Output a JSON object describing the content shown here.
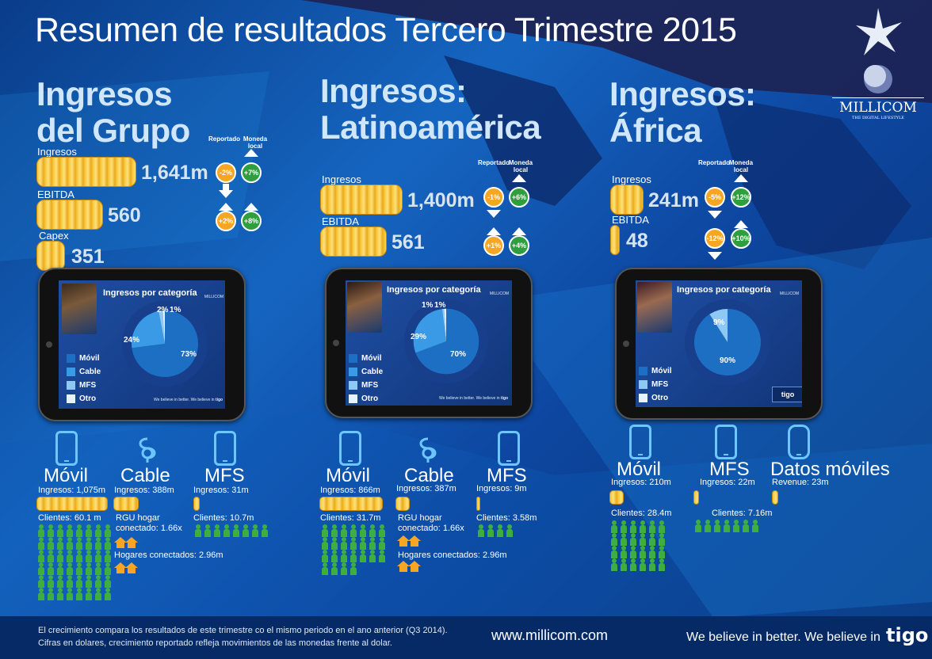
{
  "title": "Resumen de resultados Tercero Trimestre 2015",
  "brand": {
    "name": "MILLICOM",
    "tagline": "THE DIGITAL LIFESTYLE"
  },
  "colors": {
    "coin": "#f6c63b",
    "negative": "#f5a623",
    "positive": "#2e9e3e",
    "people": "#3dae3f",
    "houses": "#f5a623",
    "pie_movil": "#1d6fc4",
    "pie_cable": "#3a9ae6",
    "pie_mfs": "#8ec8f5",
    "pie_otro": "#e6f2fc"
  },
  "grupo": {
    "title_line1": "Ingresos",
    "title_line2": "del Grupo",
    "reportado_label": "Reportado",
    "moneda_local_label": "Moneda local",
    "ingresos_label": "Ingresos",
    "ingresos_value": "1,641m",
    "ebitda_label": "EBITDA",
    "ebitda_value": "560",
    "capex_label": "Capex",
    "capex_value": "351",
    "ingresos_reportado": "-2%",
    "ingresos_local": "+7%",
    "ebitda_reportado": "+2%",
    "ebitda_local": "+8%",
    "pie": {
      "title": "Ingresos por categoría",
      "slices": [
        {
          "label": "Móvil",
          "value": 73,
          "text": "73%"
        },
        {
          "label": "Cable",
          "value": 24,
          "text": "24%"
        },
        {
          "label": "MFS",
          "value": 2,
          "text": "2%"
        },
        {
          "label": "Otro",
          "value": 1,
          "text": "1%"
        }
      ]
    },
    "legend": [
      "Móvil",
      "Cable",
      "MFS",
      "Otro"
    ],
    "footer_tagline": "We believe in better. We believe in",
    "tablet_brand": "tigo",
    "movil": {
      "label": "Móvil",
      "ingresos": "Ingresos: 1,075m",
      "clientes": "Clientes: 60.1 m"
    },
    "cable": {
      "label": "Cable",
      "ingresos": "Ingresos: 388m",
      "rgu": "RGU hogar conectado: 1.66x",
      "hogares": "Hogares conectados: 2.96m"
    },
    "mfs": {
      "label": "MFS",
      "ingresos": "Ingresos: 31m",
      "clientes": "Clientes: 10.7m"
    }
  },
  "latam": {
    "title_line1": "Ingresos:",
    "title_line2": "Latinoamérica",
    "reportado_label": "Reportado",
    "moneda_local_label": "Moneda local",
    "ingresos_label": "Ingresos",
    "ingresos_value": "1,400m",
    "ebitda_label": "EBITDA",
    "ebitda_value": "561",
    "ingresos_reportado": "-1%",
    "ingresos_local": "+6%",
    "ebitda_reportado": "+1%",
    "ebitda_local": "+4%",
    "pie": {
      "title": "Ingresos por categoría",
      "slices": [
        {
          "label": "Móvil",
          "value": 70,
          "text": "70%"
        },
        {
          "label": "Cable",
          "value": 29,
          "text": "29%"
        },
        {
          "label": "MFS",
          "value": 1,
          "text": "1%"
        },
        {
          "label": "Otro",
          "value": 1,
          "text": "1%"
        }
      ]
    },
    "legend": [
      "Móvil",
      "Cable",
      "MFS",
      "Otro"
    ],
    "footer_tagline": "We believe in better. We believe in",
    "tablet_brand": "tigo",
    "movil": {
      "label": "Móvil",
      "ingresos": "Ingresos: 866m",
      "clientes": "Clientes: 31.7m"
    },
    "cable": {
      "label": "Cable",
      "ingresos": "Ingresos: 387m",
      "rgu": "RGU hogar conectado: 1.66x",
      "hogares": "Hogares conectados: 2.96m"
    },
    "mfs": {
      "label": "MFS",
      "ingresos": "Ingresos: 9m",
      "clientes": "Clientes: 3.58m"
    }
  },
  "africa": {
    "title_line1": "Ingresos:",
    "title_line2": "África",
    "reportado_label": "Reportado",
    "moneda_local_label": "Moneda local",
    "ingresos_label": "Ingresos",
    "ingresos_value": "241m",
    "ebitda_label": "EBITDA",
    "ebitda_value": "48",
    "ingresos_reportado": "-5%",
    "ingresos_local": "+12%",
    "ebitda_reportado": "-12%",
    "ebitda_local": "+10%",
    "pie": {
      "title": "Ingresos por categoría",
      "slices": [
        {
          "label": "Móvil",
          "value": 90,
          "text": "90%"
        },
        {
          "label": "MFS",
          "value": 9,
          "text": "9%"
        }
      ]
    },
    "legend": [
      "Móvil",
      "MFS",
      "Otro"
    ],
    "tablet_brand": "tigo",
    "movil": {
      "label": "Móvil",
      "ingresos": "Ingresos: 210m",
      "clientes": "Clientes: 28.4m"
    },
    "mfs": {
      "label": "MFS",
      "ingresos": "Ingresos: 22m",
      "clientes": "Clientes: 7.16m"
    },
    "datos": {
      "label": "Datos móviles",
      "revenue": "Revenue: 23m"
    }
  },
  "footer": {
    "note_line1": "El crecimiento compara los resultados de este trimestre co el mismo periodo en el ano anterior (Q3 2014).",
    "note_line2": "Cifras en dolares, crecimiento reportado refleja movimientos de las monedas frente al dolar.",
    "url": "www.millicom.com",
    "tagline": "We believe in better. We believe in",
    "logo": "tigo"
  }
}
